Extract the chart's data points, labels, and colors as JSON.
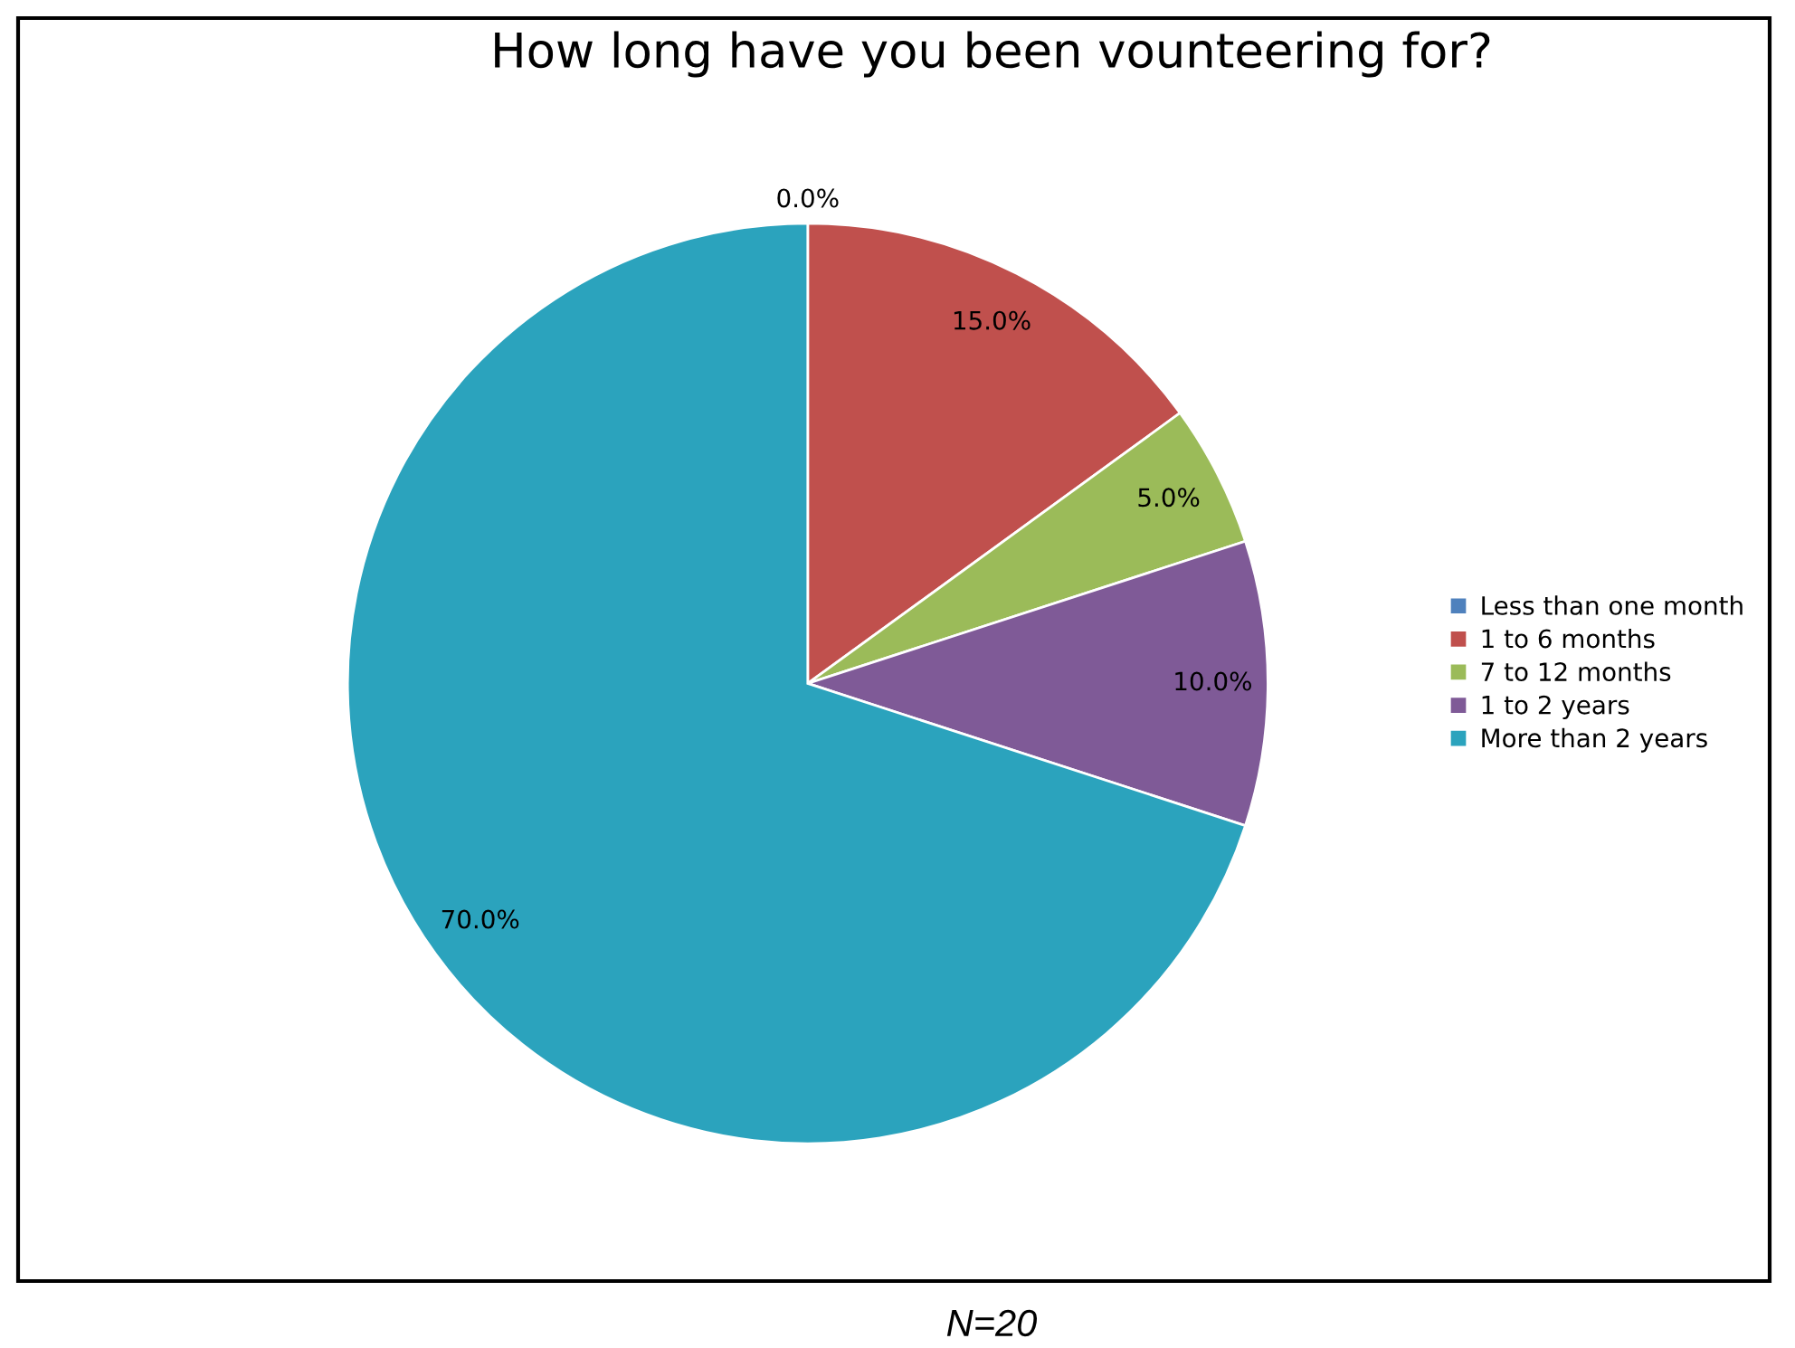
{
  "chart_data": {
    "type": "pie",
    "title": "How long have you been vounteering for?",
    "categories": [
      "Less than one month",
      "1 to 6 months",
      "7 to 12 months",
      "1 to 2 years",
      "More than 2 years"
    ],
    "values": [
      0,
      15,
      5,
      10,
      70
    ],
    "colors": [
      "#4f81bd",
      "#c0504d",
      "#9bbb59",
      "#7f5a97",
      "#2ba3bd"
    ],
    "value_labels": [
      "0.0%",
      "15.0%",
      "5.0%",
      "10.0%",
      "70.0%"
    ],
    "legend": "right",
    "annotations": [
      "N=20"
    ]
  }
}
